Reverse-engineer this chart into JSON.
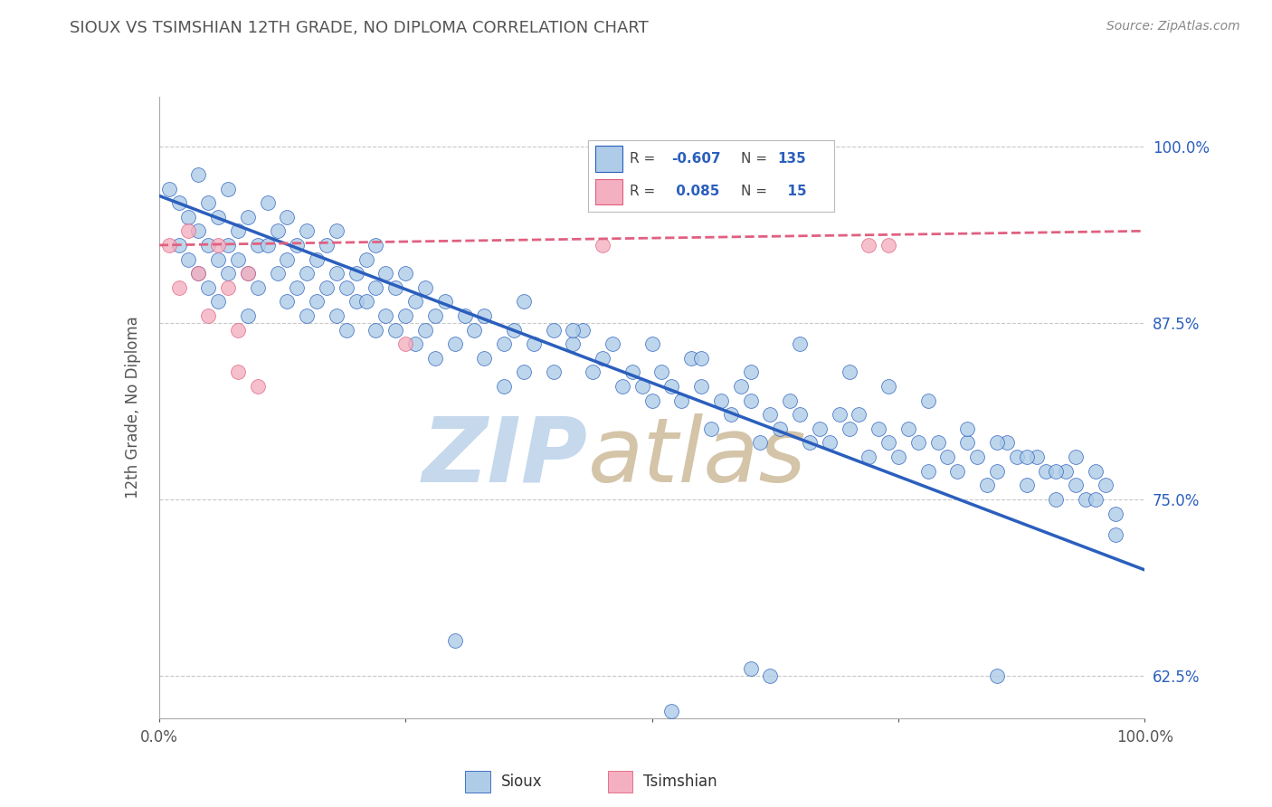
{
  "title": "SIOUX VS TSIMSHIAN 12TH GRADE, NO DIPLOMA CORRELATION CHART",
  "ylabel": "12th Grade, No Diploma",
  "source_text": "Source: ZipAtlas.com",
  "blue_color": "#aecce8",
  "pink_color": "#f4afc0",
  "blue_line_color": "#2b5fbd",
  "pink_line_color": "#e06080",
  "background_color": "#ffffff",
  "grid_color": "#c8c8c8",
  "title_color": "#555555",
  "watermark_color": "#dce8f0",
  "watermark_text": "ZIPatlas",
  "xlim": [
    0.0,
    1.0
  ],
  "ylim": [
    0.595,
    1.035
  ],
  "yticks": [
    0.625,
    0.75,
    0.875,
    1.0
  ],
  "ytick_labels": [
    "62.5%",
    "75.0%",
    "87.5%",
    "100.0%"
  ],
  "blue_line_y_start": 0.965,
  "blue_line_y_end": 0.7,
  "pink_line_y_start": 0.93,
  "pink_line_y_end": 0.94
}
